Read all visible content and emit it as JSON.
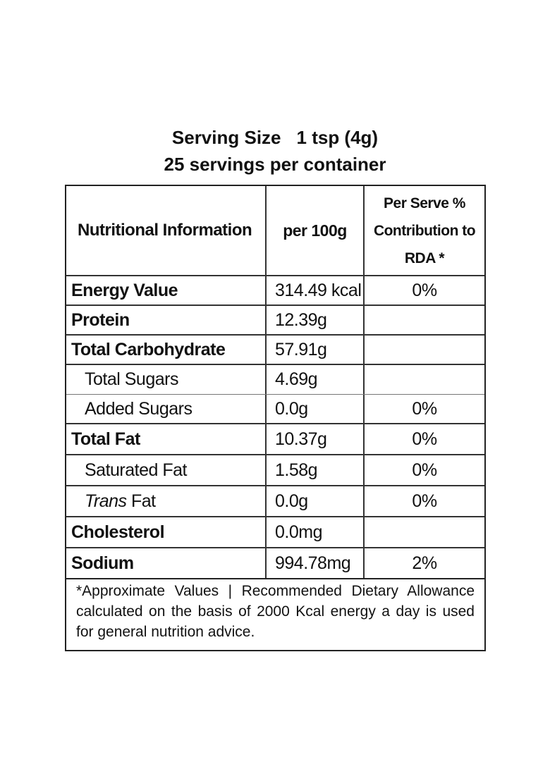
{
  "header": {
    "serving_size_label": "Serving Size",
    "serving_size_value": "1 tsp (4g)",
    "servings_per_container": "25 servings per container"
  },
  "table": {
    "columns": {
      "nutrient": "Nutritional Information",
      "per_100g": "per 100g",
      "rda_line1": "Per Serve %",
      "rda_line2": "Contribution to",
      "rda_line3": "RDA *"
    },
    "rows": [
      {
        "label": "Energy Value",
        "per_100g": "314.49 kcal",
        "rda": "0%"
      },
      {
        "label": "Protein",
        "per_100g": "12.39g",
        "rda": ""
      },
      {
        "label": "Total Carbohydrate",
        "per_100g": "57.91g",
        "rda": ""
      },
      {
        "label": "Total Sugars",
        "per_100g": "4.69g",
        "rda": ""
      },
      {
        "label": "Added Sugars",
        "per_100g": "0.0g",
        "rda": "0%"
      },
      {
        "label": "Total Fat",
        "per_100g": "10.37g",
        "rda": "0%"
      },
      {
        "label": "Saturated Fat",
        "per_100g": "1.58g",
        "rda": "0%"
      },
      {
        "label_italic": "Trans",
        "label_rest": " Fat",
        "per_100g": "0.0g",
        "rda": "0%"
      },
      {
        "label": "Cholesterol",
        "per_100g": "0.0mg",
        "rda": ""
      },
      {
        "label": "Sodium",
        "per_100g": "994.78mg",
        "rda": "2%"
      }
    ]
  },
  "footnote": "*Approximate Values | Recommended Dietary Allowance calculated on the basis of 2000 Kcal energy a day is used for general nutrition advice."
}
